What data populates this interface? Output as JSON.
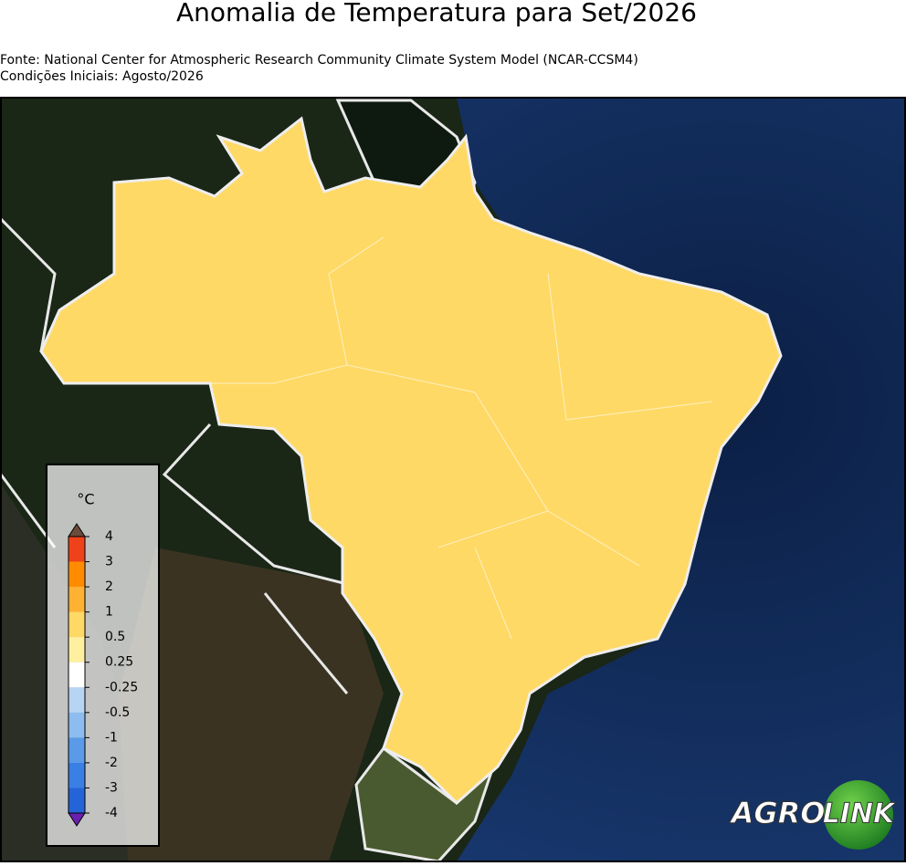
{
  "header": {
    "title": "Anomalia de Temperatura para Set/2026",
    "source": "Fonte: National Center for Atmospheric Research Community Climate System Model (NCAR-CCSM4)",
    "initial_conditions": "Condições Iniciais: Agosto/2026"
  },
  "legend": {
    "unit": "°C",
    "ticks": [
      4,
      3,
      2,
      1,
      0.5,
      0.25,
      -0.25,
      -0.5,
      -1,
      -2,
      -3,
      -4
    ],
    "colors": [
      "#f0421a",
      "#ff8c00",
      "#ffb133",
      "#ffd966",
      "#fff0a0",
      "#ffffff",
      "#b8d4f4",
      "#8cbcf0",
      "#5a9ae8",
      "#3a7fe4",
      "#2563d8"
    ],
    "over_color": "#6b4b3a",
    "under_color": "#6a1fb0"
  },
  "logo": {
    "left": "AGRO",
    "right": "LINK"
  }
}
